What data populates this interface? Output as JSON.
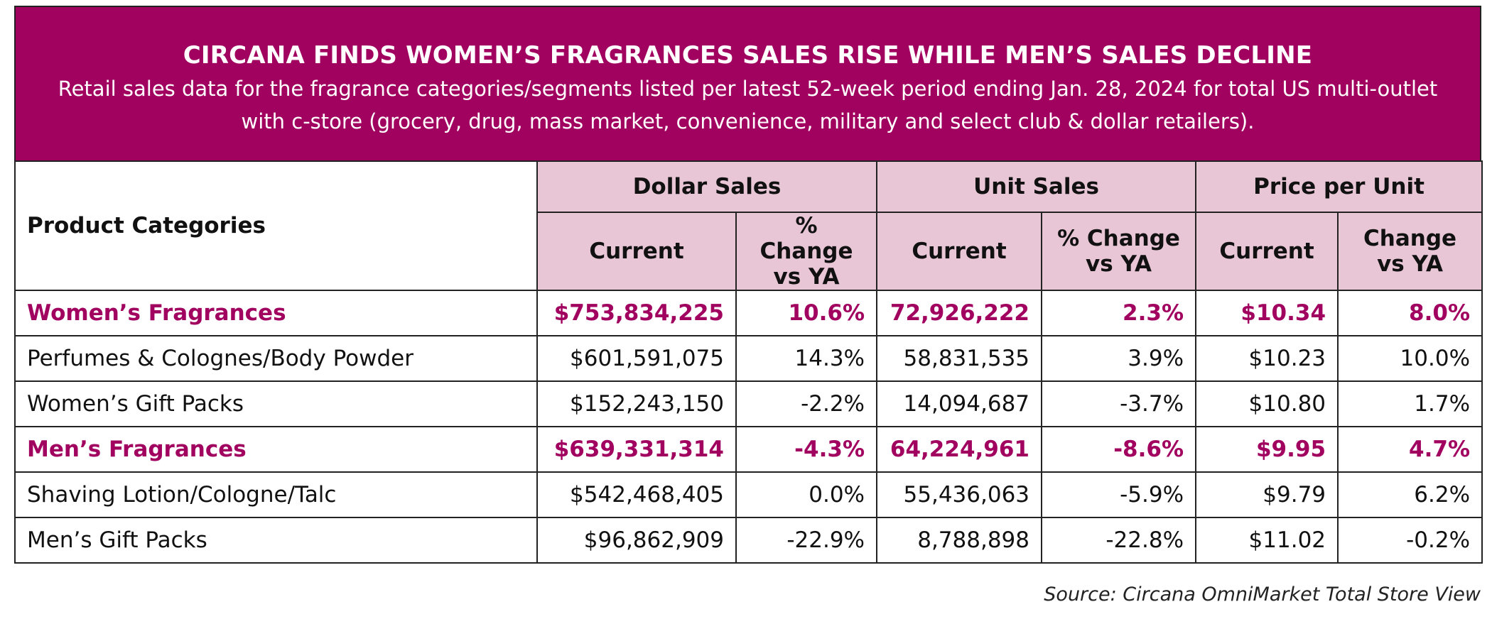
{
  "header": {
    "title": "CIRCANA FINDS WOMEN’S FRAGRANCES SALES RISE WHILE MEN’S SALES DECLINE",
    "subtitle": "Retail sales data for the fragrance categories/segments listed per latest 52-week period ending Jan. 28, 2024 for total US multi-outlet with c-store (grocery, drug, mass market, convenience, military and select club & dollar retailers)."
  },
  "table": {
    "category_header": "Product Categories",
    "groups": {
      "dollar": "Dollar Sales",
      "unit": "Unit Sales",
      "price": "Price per Unit"
    },
    "subheaders": {
      "dollar_current": "Current",
      "dollar_change": "% Change vs YA",
      "unit_current": "Current",
      "unit_change": "% Change vs YA",
      "price_current": "Current",
      "price_change": "Change vs YA"
    },
    "rows": [
      {
        "name": "Women’s Fragrances",
        "dollar": "$753,834,225",
        "dollar_chg": "10.6%",
        "unit": "72,926,222",
        "unit_chg": "2.3%",
        "price": "$10.34",
        "price_chg": "8.0%"
      },
      {
        "name": "Perfumes & Colognes/Body Powder",
        "dollar": "$601,591,075",
        "dollar_chg": "14.3%",
        "unit": "58,831,535",
        "unit_chg": "3.9%",
        "price": "$10.23",
        "price_chg": "10.0%"
      },
      {
        "name": "Women’s Gift Packs",
        "dollar": "$152,243,150",
        "dollar_chg": "-2.2%",
        "unit": "14,094,687",
        "unit_chg": "-3.7%",
        "price": "$10.80",
        "price_chg": "1.7%"
      },
      {
        "name": "Men’s Fragrances",
        "dollar": "$639,331,314",
        "dollar_chg": "-4.3%",
        "unit": "64,224,961",
        "unit_chg": "-8.6%",
        "price": "$9.95",
        "price_chg": "4.7%"
      },
      {
        "name": "Shaving Lotion/Cologne/Talc",
        "dollar": "$542,468,405",
        "dollar_chg": "0.0%",
        "unit": "55,436,063",
        "unit_chg": "-5.9%",
        "price": "$9.79",
        "price_chg": "6.2%"
      },
      {
        "name": "Men’s Gift Packs",
        "dollar": "$96,862,909",
        "dollar_chg": "-22.9%",
        "unit": "8,788,898",
        "unit_chg": "-22.8%",
        "price": "$11.02",
        "price_chg": "-0.2%"
      }
    ]
  },
  "source": "Source: Circana OmniMarket Total Store View",
  "colors": {
    "brand": "#a1015f",
    "header_fill": "#e8c6d6"
  }
}
